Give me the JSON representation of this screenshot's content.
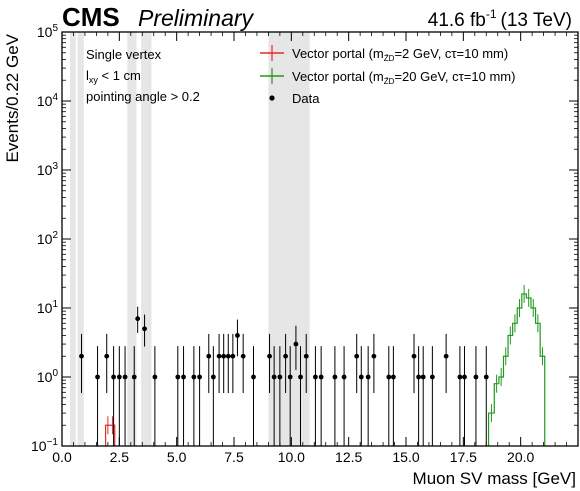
{
  "header": {
    "experiment": "CMS",
    "status": "Preliminary",
    "lumi_value": "41.6 fb",
    "lumi_exp": "-1",
    "lumi_energy": "(13 TeV)"
  },
  "annotations": {
    "line1": "Single vertex",
    "line2_main": "l",
    "line2_sub": "xy",
    "line2_rest": " < 1 cm",
    "line3": "pointing angle > 0.2"
  },
  "colors": {
    "signal_2gev": "#e8292b",
    "signal_20gev": "#1f9a1f",
    "data": "#000000",
    "veto_band": "#e6e6e6"
  },
  "legend": {
    "entries": [
      {
        "label_pre": "Vector portal (m",
        "label_sub": "Z̄D",
        "label_post": "=2 GeV, cτ=10 mm)",
        "color": "#e8292b"
      },
      {
        "label_pre": "Vector portal (m",
        "label_sub": "Z̄D",
        "label_post": "=20 GeV, cτ=10 mm)",
        "color": "#1f9a1f"
      },
      {
        "label": "Data",
        "color": "#000000"
      }
    ]
  },
  "chart_data": {
    "type": "histogram",
    "xlabel": "Muon SV mass [GeV]",
    "ylabel": "Events/0.22 GeV",
    "xlim": [
      0,
      22.5
    ],
    "ylim": [
      0.1,
      100000
    ],
    "yscale": "log",
    "x_ticks": [
      0.0,
      2.5,
      5.0,
      7.5,
      10.0,
      12.5,
      15.0,
      17.5,
      20.0
    ],
    "x_tick_labels": [
      "0.0",
      "2.5",
      "5.0",
      "7.5",
      "10.0",
      "12.5",
      "15.0",
      "17.5",
      "20.0"
    ],
    "y_ticks": [
      {
        "base": "10",
        "exp": "−1",
        "value": 0.1
      },
      {
        "base": "10",
        "exp": "0",
        "value": 1
      },
      {
        "base": "10",
        "exp": "1",
        "value": 10
      },
      {
        "base": "10",
        "exp": "2",
        "value": 100
      },
      {
        "base": "10",
        "exp": "3",
        "value": 1000
      },
      {
        "base": "10",
        "exp": "4",
        "value": 10000
      },
      {
        "base": "10",
        "exp": "5",
        "value": 100000
      }
    ],
    "veto_bands": [
      [
        0.35,
        0.6
      ],
      [
        0.68,
        0.95
      ],
      [
        2.85,
        3.25
      ],
      [
        3.45,
        3.9
      ],
      [
        9.0,
        10.8
      ]
    ],
    "data_points": {
      "x": [
        0.85,
        1.55,
        1.95,
        2.25,
        2.5,
        2.75,
        3.15,
        3.3,
        3.6,
        4.05,
        5.05,
        5.3,
        5.75,
        6.0,
        6.4,
        6.6,
        6.85,
        7.05,
        7.25,
        7.45,
        7.65,
        7.9,
        8.35,
        9.05,
        9.25,
        9.5,
        9.75,
        9.95,
        10.2,
        10.4,
        10.65,
        11.05,
        11.3,
        11.9,
        12.3,
        12.85,
        13.05,
        13.35,
        13.6,
        14.25,
        14.45,
        15.35,
        15.55,
        15.75,
        16.15,
        16.75,
        17.35,
        17.55,
        18.05,
        18.5
      ],
      "y": [
        2,
        1,
        2,
        1,
        1,
        1,
        1,
        7,
        5,
        1,
        1,
        1,
        1,
        1,
        2,
        1,
        2,
        2,
        2,
        2,
        4,
        2,
        1,
        2,
        1,
        1,
        2,
        1,
        3,
        1,
        2,
        1,
        1,
        1,
        1,
        2,
        1,
        1,
        2,
        1,
        1,
        2,
        1,
        1,
        1,
        2,
        1,
        1,
        1,
        1
      ]
    },
    "series": [
      {
        "name": "Vector portal (mZ̄D=2 GeV, cτ=10 mm)",
        "bin_edges": [
          1.9,
          2.1,
          2.3
        ],
        "values": [
          0.2,
          0.2
        ]
      },
      {
        "name": "Vector portal (mZ̄D=20 GeV, cτ=10 mm)",
        "bin_edges": [
          18.6,
          18.85,
          19.05,
          19.25,
          19.45,
          19.65,
          19.85,
          20.05,
          20.25,
          20.45,
          20.65,
          20.85,
          21.05
        ],
        "values": [
          0.3,
          0.8,
          1.0,
          2.0,
          4.0,
          6.0,
          10.0,
          16.0,
          14.0,
          10.0,
          6.0,
          2.0
        ]
      }
    ]
  }
}
